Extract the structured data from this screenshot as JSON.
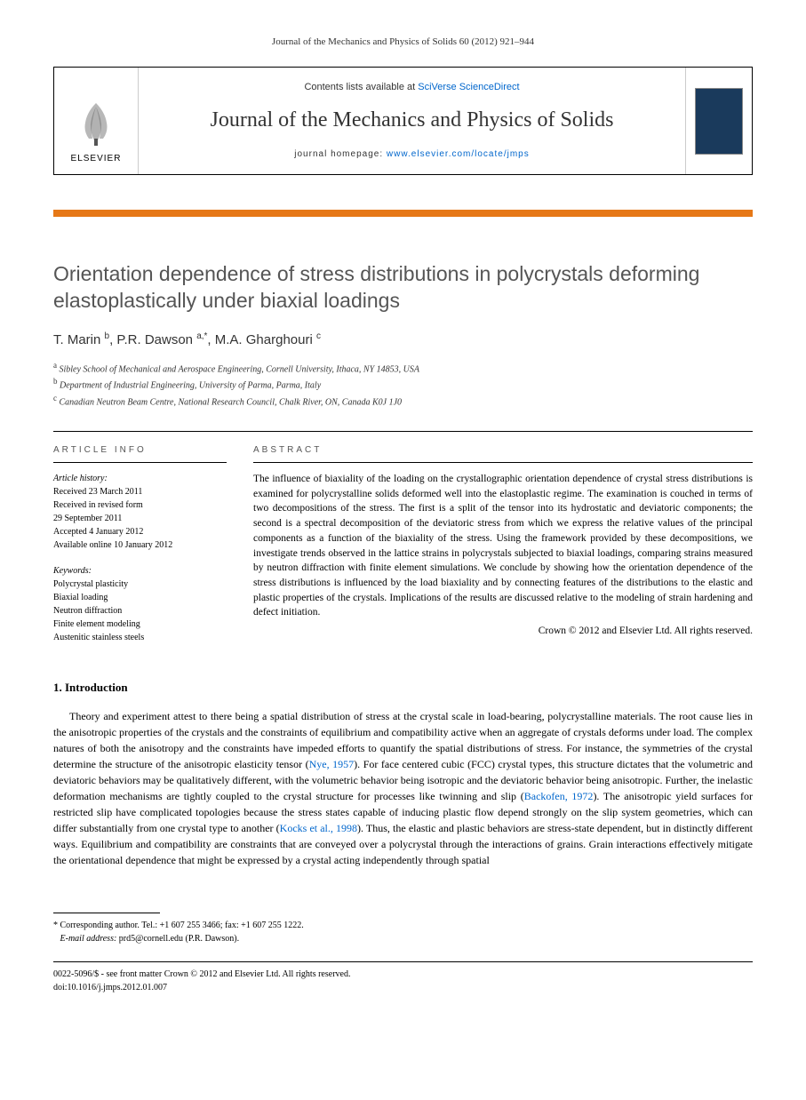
{
  "journal_ref": "Journal of the Mechanics and Physics of Solids 60 (2012) 921–944",
  "header": {
    "contents_prefix": "Contents lists available at ",
    "contents_link": "SciVerse ScienceDirect",
    "journal_title": "Journal of the Mechanics and Physics of Solids",
    "homepage_prefix": "journal homepage: ",
    "homepage_link": "www.elsevier.com/locate/jmps",
    "elsevier_label": "ELSEVIER"
  },
  "title": "Orientation dependence of stress distributions in polycrystals deforming elastoplastically under biaxial loadings",
  "authors_html": "T. Marin <sup>b</sup>, P.R. Dawson <sup>a,*</sup>, M.A. Gharghouri <sup>c</sup>",
  "affiliations": {
    "a": "Sibley School of Mechanical and Aerospace Engineering, Cornell University, Ithaca, NY 14853, USA",
    "b": "Department of Industrial Engineering, University of Parma, Parma, Italy",
    "c": "Canadian Neutron Beam Centre, National Research Council, Chalk River, ON, Canada K0J 1J0"
  },
  "article_info": {
    "label": "ARTICLE INFO",
    "history_label": "Article history:",
    "received": "Received 23 March 2011",
    "revised1": "Received in revised form",
    "revised2": "29 September 2011",
    "accepted": "Accepted 4 January 2012",
    "online": "Available online 10 January 2012",
    "keywords_label": "Keywords:",
    "keywords": [
      "Polycrystal plasticity",
      "Biaxial loading",
      "Neutron diffraction",
      "Finite element modeling",
      "Austenitic stainless steels"
    ]
  },
  "abstract": {
    "label": "ABSTRACT",
    "text": "The influence of biaxiality of the loading on the crystallographic orientation dependence of crystal stress distributions is examined for polycrystalline solids deformed well into the elastoplastic regime. The examination is couched in terms of two decompositions of the stress. The first is a split of the tensor into its hydrostatic and deviatoric components; the second is a spectral decomposition of the deviatoric stress from which we express the relative values of the principal components as a function of the biaxiality of the stress. Using the framework provided by these decompositions, we investigate trends observed in the lattice strains in polycrystals subjected to biaxial loadings, comparing strains measured by neutron diffraction with finite element simulations. We conclude by showing how the orientation dependence of the stress distributions is influenced by the load biaxiality and by connecting features of the distributions to the elastic and plastic properties of the crystals. Implications of the results are discussed relative to the modeling of strain hardening and defect initiation.",
    "copyright": "Crown © 2012 and Elsevier Ltd. All rights reserved."
  },
  "intro": {
    "heading": "1.  Introduction",
    "paragraph": "Theory and experiment attest to there being a spatial distribution of stress at the crystal scale in load-bearing, polycrystalline materials. The root cause lies in the anisotropic properties of the crystals and the constraints of equilibrium and compatibility active when an aggregate of crystals deforms under load. The complex natures of both the anisotropy and the constraints have impeded efforts to quantify the spatial distributions of stress. For instance, the symmetries of the crystal determine the structure of the anisotropic elasticity tensor (Nye, 1957). For face centered cubic (FCC) crystal types, this structure dictates that the volumetric and deviatoric behaviors may be qualitatively different, with the volumetric behavior being isotropic and the deviatoric behavior being anisotropic. Further, the inelastic deformation mechanisms are tightly coupled to the crystal structure for processes like twinning and slip (Backofen, 1972). The anisotropic yield surfaces for restricted slip have complicated topologies because the stress states capable of inducing plastic flow depend strongly on the slip system geometries, which can differ substantially from one crystal type to another (Kocks et al., 1998). Thus, the elastic and plastic behaviors are stress-state dependent, but in distinctly different ways. Equilibrium and compatibility are constraints that are conveyed over a polycrystal through the interactions of grains. Grain interactions effectively mitigate the orientational dependence that might be expressed by a crystal acting independently through spatial"
  },
  "footnote": {
    "corresponding": "* Corresponding author. Tel.: +1 607 255 3466; fax: +1 607 255 1222.",
    "email_label": "E-mail address:",
    "email": "prd5@cornell.edu (P.R. Dawson)."
  },
  "footer": {
    "line1": "0022-5096/$ - see front matter Crown © 2012 and Elsevier Ltd. All rights reserved.",
    "line2": "doi:10.1016/j.jmps.2012.01.007"
  },
  "colors": {
    "link": "#0066cc",
    "orange": "#e67817",
    "cover": "#1a3a5c",
    "title_gray": "#555555"
  }
}
